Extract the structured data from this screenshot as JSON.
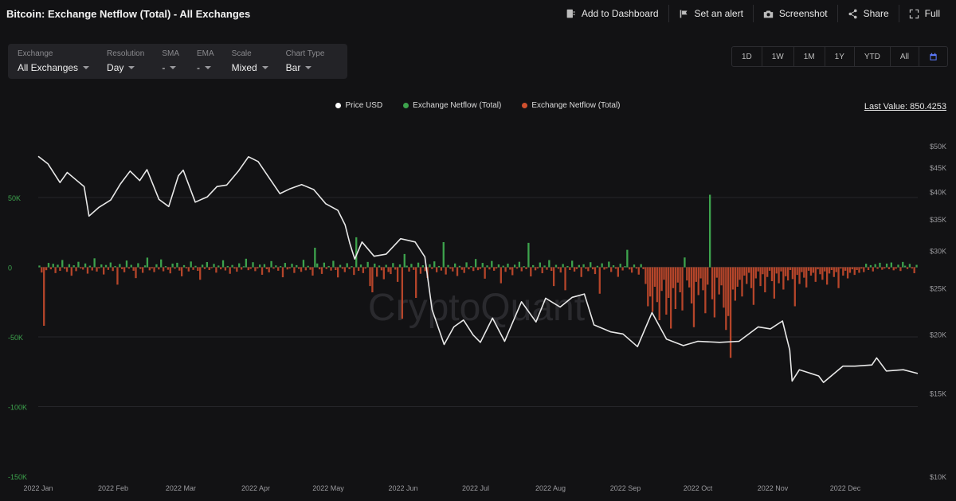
{
  "header": {
    "title": "Bitcoin: Exchange Netflow (Total) - All Exchanges",
    "actions": [
      {
        "label": "Add to Dashboard",
        "icon": "dashboard-icon"
      },
      {
        "label": "Set an alert",
        "icon": "alert-icon"
      },
      {
        "label": "Screenshot",
        "icon": "camera-icon"
      },
      {
        "label": "Share",
        "icon": "share-icon"
      },
      {
        "label": "Full",
        "icon": "fullscreen-icon"
      }
    ]
  },
  "controls": [
    {
      "label": "Exchange",
      "value": "All Exchanges"
    },
    {
      "label": "Resolution",
      "value": "Day"
    },
    {
      "label": "SMA",
      "value": "-"
    },
    {
      "label": "EMA",
      "value": "-"
    },
    {
      "label": "Scale",
      "value": "Mixed"
    },
    {
      "label": "Chart Type",
      "value": "Bar"
    }
  ],
  "ranges": [
    "1D",
    "1W",
    "1M",
    "1Y",
    "YTD",
    "All"
  ],
  "last_value": "Last Value: 850.4253",
  "watermark": "CryptoQuant",
  "colors": {
    "price": "#e8e8e8",
    "inflow": "#3da34d",
    "outflow": "#b5452a",
    "left_axis": "#3da34d",
    "right_axis": "#9a9a9e"
  },
  "chart_data": {
    "type": "bar",
    "legend": [
      {
        "name": "Price USD",
        "color": "#ffffff"
      },
      {
        "name": "Exchange Netflow (Total)",
        "color": "#3da34d"
      },
      {
        "name": "Exchange Netflow (Total)",
        "color": "#d0502e"
      }
    ],
    "x_ticks": [
      "2022 Jan",
      "2022 Feb",
      "2022 Mar",
      "2022 Apr",
      "2022 May",
      "2022 Jun",
      "2022 Jul",
      "2022 Aug",
      "2022 Sep",
      "2022 Oct",
      "2022 Nov",
      "2022 Dec"
    ],
    "y_left": {
      "ticks": [
        "50K",
        "0",
        "-50K",
        "-100K",
        "-150K"
      ],
      "values": [
        50000,
        0,
        -50000,
        -100000,
        -150000
      ],
      "range": [
        -150000,
        90000
      ]
    },
    "y_right": {
      "ticks": [
        "$50K",
        "$45K",
        "$40K",
        "$35K",
        "$30K",
        "$25K",
        "$20K",
        "$15K",
        "$10K"
      ],
      "values": [
        50000,
        45000,
        40000,
        35000,
        30000,
        25000,
        20000,
        15000,
        10000
      ],
      "scale": "log"
    },
    "price_series": {
      "name": "Price USD",
      "points": [
        [
          "2022-01-01",
          47500
        ],
        [
          "2022-01-05",
          45800
        ],
        [
          "2022-01-10",
          41800
        ],
        [
          "2022-01-13",
          43900
        ],
        [
          "2022-01-17",
          42200
        ],
        [
          "2022-01-20",
          41000
        ],
        [
          "2022-01-22",
          35500
        ],
        [
          "2022-01-26",
          37000
        ],
        [
          "2022-01-31",
          38400
        ],
        [
          "2022-02-04",
          41500
        ],
        [
          "2022-02-08",
          44200
        ],
        [
          "2022-02-12",
          42200
        ],
        [
          "2022-02-15",
          44500
        ],
        [
          "2022-02-20",
          38500
        ],
        [
          "2022-02-24",
          37200
        ],
        [
          "2022-02-28",
          43200
        ],
        [
          "2022-03-02",
          44400
        ],
        [
          "2022-03-07",
          38000
        ],
        [
          "2022-03-12",
          39000
        ],
        [
          "2022-03-16",
          41000
        ],
        [
          "2022-03-20",
          41300
        ],
        [
          "2022-03-25",
          44300
        ],
        [
          "2022-03-29",
          47400
        ],
        [
          "2022-04-02",
          46300
        ],
        [
          "2022-04-06",
          43200
        ],
        [
          "2022-04-11",
          39600
        ],
        [
          "2022-04-15",
          40500
        ],
        [
          "2022-04-20",
          41400
        ],
        [
          "2022-04-25",
          40400
        ],
        [
          "2022-04-30",
          37700
        ],
        [
          "2022-05-05",
          36500
        ],
        [
          "2022-05-08",
          34000
        ],
        [
          "2022-05-10",
          31000
        ],
        [
          "2022-05-12",
          28800
        ],
        [
          "2022-05-15",
          31300
        ],
        [
          "2022-05-20",
          29200
        ],
        [
          "2022-05-25",
          29500
        ],
        [
          "2022-05-31",
          31800
        ],
        [
          "2022-06-06",
          31300
        ],
        [
          "2022-06-10",
          29100
        ],
        [
          "2022-06-13",
          22500
        ],
        [
          "2022-06-18",
          19000
        ],
        [
          "2022-06-22",
          20700
        ],
        [
          "2022-06-26",
          21400
        ],
        [
          "2022-06-30",
          19900
        ],
        [
          "2022-07-03",
          19200
        ],
        [
          "2022-07-08",
          21600
        ],
        [
          "2022-07-13",
          19300
        ],
        [
          "2022-07-20",
          23400
        ],
        [
          "2022-07-26",
          21200
        ],
        [
          "2022-07-30",
          23800
        ],
        [
          "2022-08-05",
          22800
        ],
        [
          "2022-08-10",
          23900
        ],
        [
          "2022-08-15",
          24300
        ],
        [
          "2022-08-19",
          20900
        ],
        [
          "2022-08-26",
          20200
        ],
        [
          "2022-08-31",
          20000
        ],
        [
          "2022-09-06",
          18800
        ],
        [
          "2022-09-12",
          22200
        ],
        [
          "2022-09-18",
          19500
        ],
        [
          "2022-09-25",
          18900
        ],
        [
          "2022-10-01",
          19300
        ],
        [
          "2022-10-10",
          19200
        ],
        [
          "2022-10-18",
          19300
        ],
        [
          "2022-10-26",
          20700
        ],
        [
          "2022-10-31",
          20500
        ],
        [
          "2022-11-05",
          21300
        ],
        [
          "2022-11-08",
          18500
        ],
        [
          "2022-11-09",
          15900
        ],
        [
          "2022-11-12",
          16800
        ],
        [
          "2022-11-20",
          16300
        ],
        [
          "2022-11-22",
          15800
        ],
        [
          "2022-11-30",
          17100
        ],
        [
          "2022-12-05",
          17100
        ],
        [
          "2022-12-12",
          17200
        ],
        [
          "2022-12-14",
          17800
        ],
        [
          "2022-12-18",
          16700
        ],
        [
          "2022-12-25",
          16800
        ],
        [
          "2022-12-31",
          16500
        ]
      ]
    },
    "netflow_series": {
      "name": "Exchange Netflow (Total)",
      "values": [
        1200,
        -3800,
        -42000,
        -2100,
        3100,
        -1500,
        2500,
        -4200,
        1800,
        -2600,
        5200,
        -1100,
        -3300,
        2200,
        -6100,
        1400,
        -2800,
        3900,
        -900,
        -1700,
        2700,
        -4600,
        1100,
        -2300,
        6400,
        -3100,
        -800,
        2000,
        -5200,
        1600,
        -1900,
        3400,
        -2700,
        900,
        -12500,
        2300,
        -1400,
        -3600,
        4800,
        -1000,
        1700,
        -2500,
        -7800,
        2900,
        -1200,
        -4000,
        1300,
        6900,
        -2200,
        -900,
        -3500,
        2100,
        -1600,
        5600,
        -2900,
        800,
        -1800,
        -4400,
        2600,
        -1100,
        3200,
        -2400,
        -6500,
        1500,
        -800,
        -3000,
        4100,
        -1900,
        1000,
        -2600,
        -9000,
        1800,
        -1300,
        3700,
        -2000,
        -700,
        2400,
        -3900,
        1200,
        -1500,
        5000,
        -2300,
        900,
        -4700,
        1600,
        -1000,
        -3200,
        2800,
        -1700,
        700,
        6100,
        -2100,
        -1200,
        3600,
        -2800,
        -900,
        1900,
        -5400,
        2200,
        -1400,
        -3700,
        4400,
        -1100,
        1300,
        -2500,
        800,
        -7200,
        3100,
        -1600,
        -900,
        2500,
        -4100,
        1500,
        -1200,
        -3300,
        5300,
        -2200,
        1000,
        -1800,
        -6000,
        14000,
        2700,
        -1500,
        -4800,
        3300,
        -1300,
        900,
        -2400,
        4600,
        -2000,
        -7300,
        1700,
        -1100,
        -3500,
        2900,
        -1400,
        800,
        -5500,
        21500,
        -2600,
        1900,
        -4200,
        -1000,
        3800,
        -13500,
        -18000,
        2600,
        -6800,
        1200,
        -2200,
        -8600,
        1700,
        -3400,
        -4900,
        3000,
        -1700,
        -10500,
        2000,
        -37000,
        9500,
        1100,
        -3100,
        2400,
        -1900,
        -22000,
        3300,
        -4700,
        1400,
        -2800,
        -7700,
        2100,
        -1300,
        4200,
        -3600,
        900,
        -2400,
        18000,
        -5200,
        1600,
        -1100,
        -3000,
        2700,
        -6300,
        1000,
        -1800,
        -4100,
        3500,
        -1500,
        800,
        -2700,
        5900,
        -2100,
        -1200,
        3100,
        -8200,
        1300,
        -1600,
        4500,
        -2500,
        -900,
        2000,
        -11500,
        1100,
        -3300,
        2600,
        -1700,
        -5700,
        1800,
        -1000,
        3900,
        -2900,
        800,
        -1400,
        17500,
        -6600,
        1500,
        -2200,
        -900,
        3400,
        -4300,
        1200,
        -1800,
        5100,
        -2600,
        -13500,
        1700,
        -1100,
        -3800,
        2300,
        -16500,
        900,
        -2000,
        4700,
        -3100,
        -1300,
        1600,
        -7000,
        2100,
        -1200,
        -2800,
        3600,
        -1500,
        -4900,
        1000,
        -19000,
        2800,
        -1700,
        -900,
        4000,
        -3400,
        1400,
        -1100,
        -6900,
        2500,
        -2300,
        800,
        12500,
        -1600,
        -3900,
        1900,
        -1000,
        -5300,
        2200,
        -1400,
        -12000,
        -28000,
        -21000,
        -32000,
        -14000,
        -25000,
        -38000,
        -17000,
        -9000,
        -34000,
        -22000,
        -44000,
        -15000,
        -30000,
        -11000,
        -18000,
        -31000,
        7000,
        -9500,
        -14500,
        -26000,
        -43000,
        -10500,
        -20000,
        -8000,
        -16500,
        -33000,
        -12500,
        52000,
        -23000,
        -36000,
        -7500,
        -19500,
        -13000,
        -29000,
        -45000,
        -35000,
        -65000,
        -16000,
        -24000,
        -14000,
        -9000,
        -21000,
        -6000,
        -12000,
        -4000,
        -15000,
        -27000,
        -8000,
        -3000,
        -13500,
        -5000,
        -18000,
        -7000,
        -2500,
        -10000,
        -22500,
        -4500,
        -11500,
        -3000,
        -16000,
        -6500,
        -9500,
        -2000,
        -8500,
        -28000,
        -5500,
        -12000,
        -3500,
        -7500,
        -14500,
        -2500,
        -6000,
        -4000,
        -10500,
        -1500,
        -5000,
        -9000,
        -3000,
        -12500,
        -4500,
        -2000,
        -7000,
        -3500,
        -15000,
        -1000,
        -6000,
        -2500,
        -8000,
        -4000,
        -1500,
        -5500,
        -2000,
        -4000,
        -1000,
        -3500,
        2500,
        -2000,
        1500,
        -3000,
        2200,
        -1200,
        3200,
        -1800,
        -900,
        2600,
        -1400,
        3400,
        -2200,
        -1100,
        1800,
        -2700,
        3800,
        1100,
        -1300,
        2400,
        -900,
        -4300,
        1700
      ]
    }
  }
}
